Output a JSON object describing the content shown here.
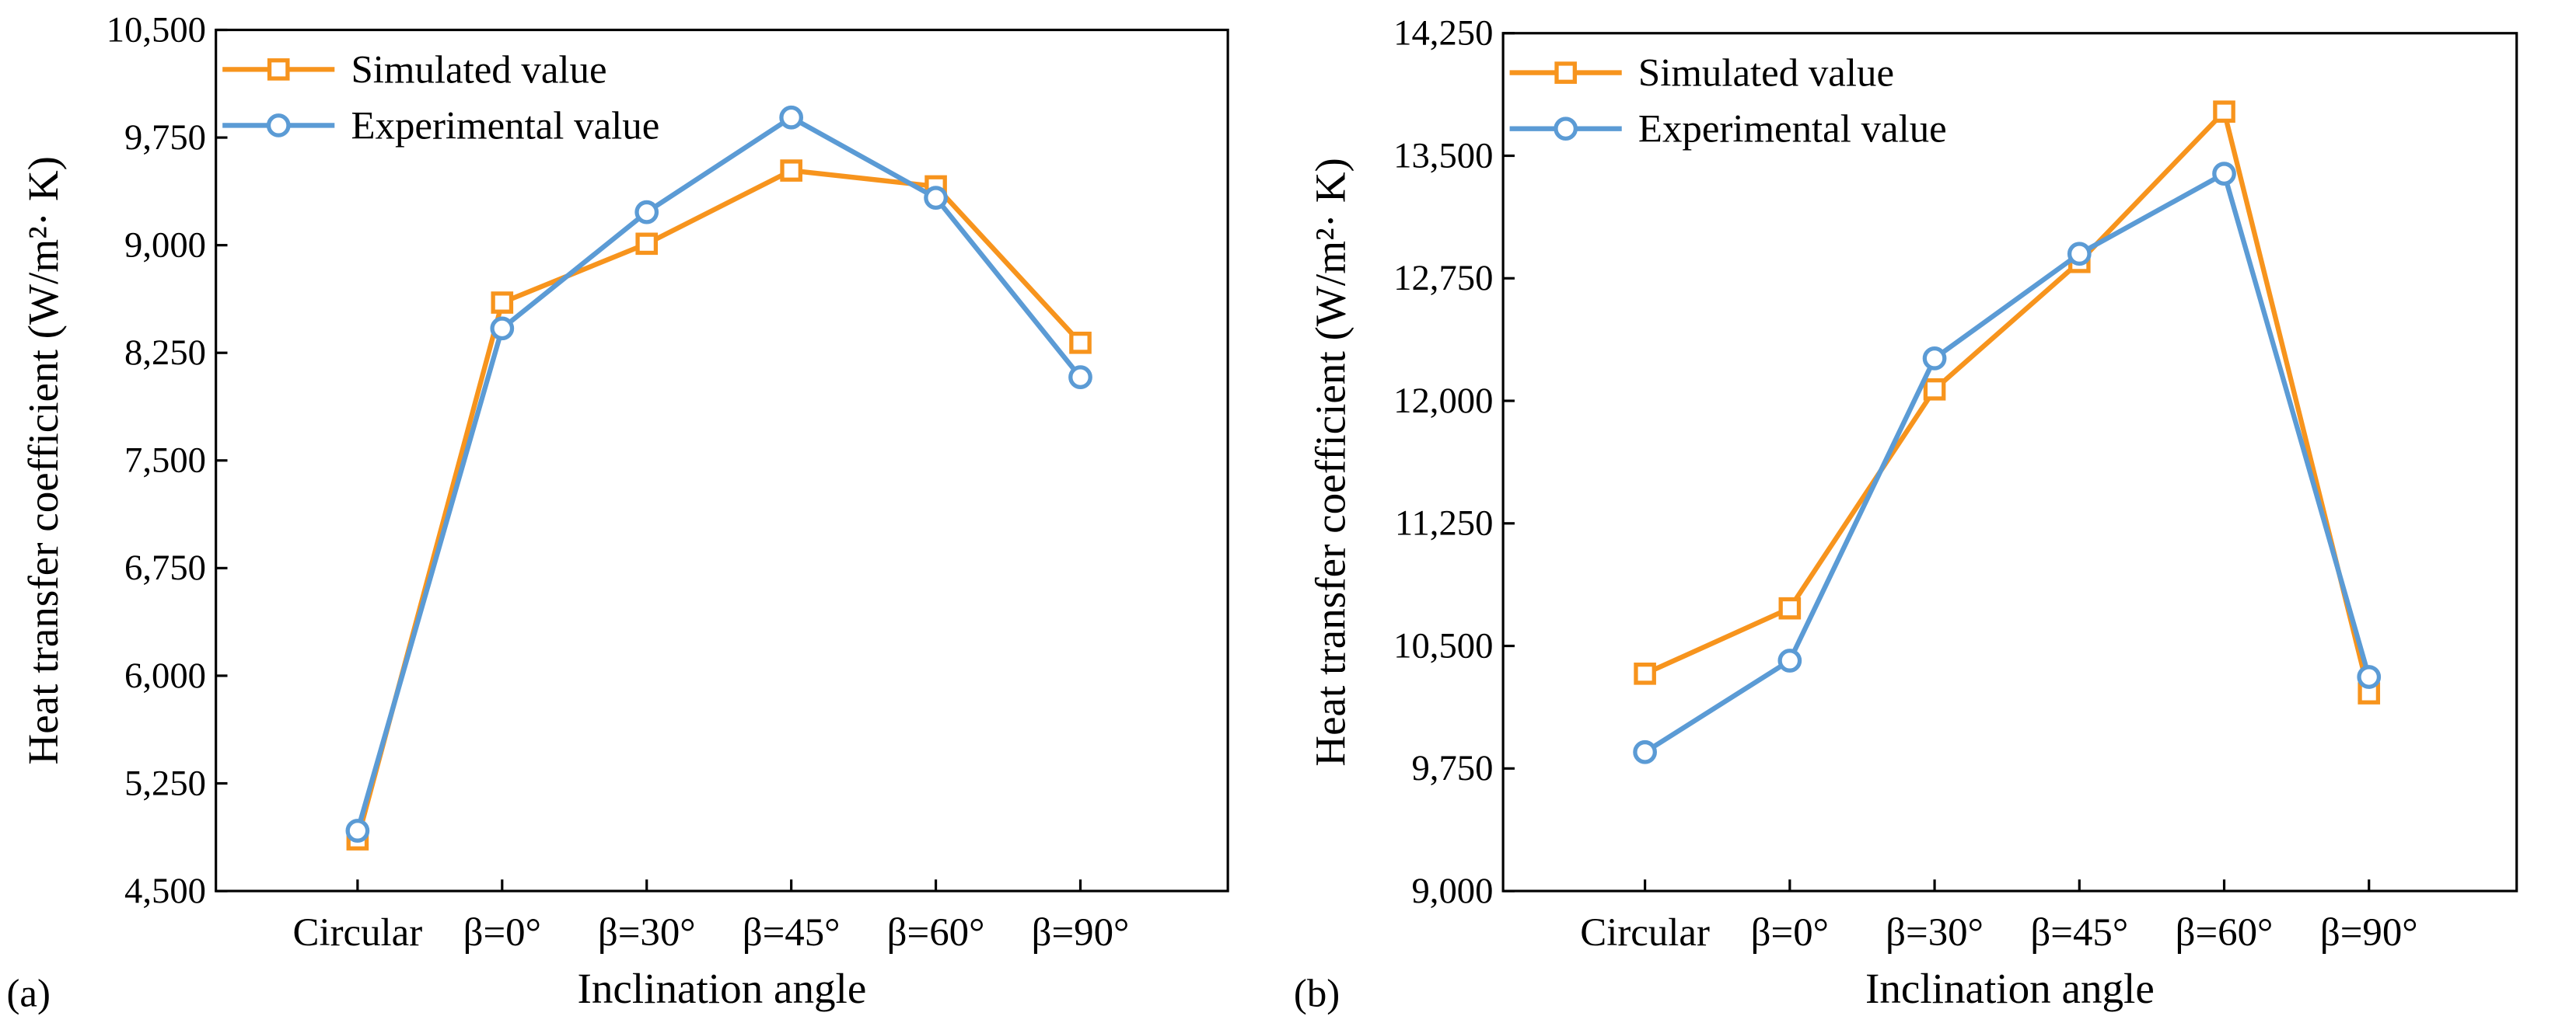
{
  "chart_data": [
    {
      "type": "line",
      "panel_label": "(a)",
      "xlabel": "Inclination angle",
      "ylabel": "Heat transfer coefficient (W/m²· K)",
      "categories": [
        "Circular",
        "β=0°",
        "β=30°",
        "β=45°",
        "β=60°",
        "β=90°"
      ],
      "ylim": [
        4500,
        10500
      ],
      "yticks": [
        4500,
        5250,
        6000,
        6750,
        7500,
        8250,
        9000,
        9750,
        10500
      ],
      "ytick_labels": [
        "4,500",
        "5,250",
        "6,000",
        "6,750",
        "7,500",
        "8,250",
        "9,000",
        "9,750",
        "10,500"
      ],
      "legend_position": "top-left",
      "series": [
        {
          "name": "Simulated value",
          "marker": "square",
          "color": "#F7941D",
          "values": [
            4860,
            8600,
            9010,
            9520,
            9410,
            8320
          ]
        },
        {
          "name": "Experimental value",
          "marker": "circle",
          "color": "#5B9BD5",
          "values": [
            4920,
            8420,
            9230,
            9890,
            9330,
            8080
          ]
        }
      ]
    },
    {
      "type": "line",
      "panel_label": "(b)",
      "xlabel": "Inclination angle",
      "ylabel": "Heat transfer coefficient (W/m²· K)",
      "categories": [
        "Circular",
        "β=0°",
        "β=30°",
        "β=45°",
        "β=60°",
        "β=90°"
      ],
      "ylim": [
        9000,
        14250
      ],
      "yticks": [
        9000,
        9750,
        10500,
        11250,
        12000,
        12750,
        13500,
        14250
      ],
      "ytick_labels": [
        "9,000",
        "9,750",
        "10,500",
        "11,250",
        "12,000",
        "12,750",
        "13,500",
        "14,250"
      ],
      "legend_position": "top-left",
      "series": [
        {
          "name": "Simulated value",
          "marker": "square",
          "color": "#F7941D",
          "values": [
            10330,
            10730,
            12070,
            12850,
            13770,
            10210
          ]
        },
        {
          "name": "Experimental value",
          "marker": "circle",
          "color": "#5B9BD5",
          "values": [
            9850,
            10410,
            12260,
            12900,
            13390,
            10310
          ]
        }
      ]
    }
  ]
}
